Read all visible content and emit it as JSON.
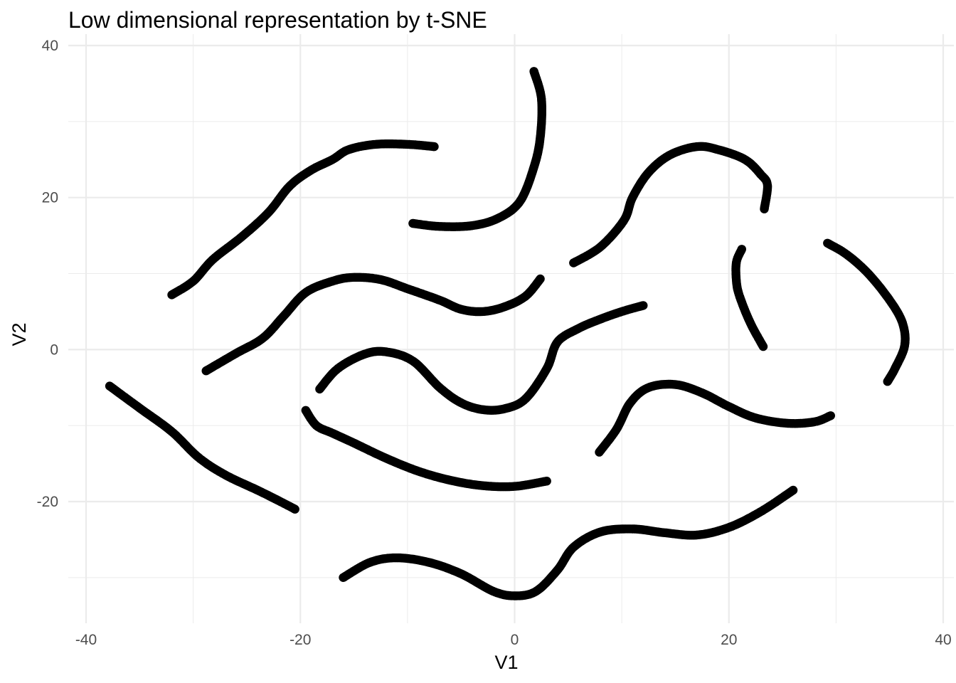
{
  "chart_data": {
    "type": "scatter",
    "title": "Low dimensional representation by t-SNE",
    "xlabel": "V1",
    "ylabel": "V2",
    "xlim": [
      -40,
      40
    ],
    "ylim": [
      -36,
      40
    ],
    "x_ticks": [
      -40,
      -20,
      0,
      20,
      40
    ],
    "y_ticks": [
      -20,
      0,
      20,
      40
    ],
    "x_tick_labels": [
      "-40",
      "-20",
      "0",
      "20",
      "40"
    ],
    "y_tick_labels": [
      "-20",
      "0",
      "20",
      "40"
    ],
    "x_minor_grid": [
      -30,
      -10,
      10,
      30
    ],
    "y_minor_grid": [
      -30,
      -10,
      10,
      30
    ],
    "grid": true,
    "legend": "none",
    "point_color": "#000000",
    "grid_color": "#ebebeb",
    "background": "#ffffff",
    "series": [
      {
        "points": [
          [
            -32,
            7.2
          ],
          [
            -30,
            9
          ],
          [
            -28.2,
            11.8
          ],
          [
            -25.5,
            14.8
          ],
          [
            -23,
            18
          ],
          [
            -21,
            21.5
          ],
          [
            -19,
            23.6
          ],
          [
            -17,
            25
          ],
          [
            -15.5,
            26.3
          ],
          [
            -13,
            27
          ],
          [
            -10,
            27
          ],
          [
            -7.5,
            26.7
          ]
        ]
      },
      {
        "points": [
          [
            -9.5,
            16.6
          ],
          [
            -7,
            16.2
          ],
          [
            -4,
            16.3
          ],
          [
            -1.5,
            17.3
          ],
          [
            0.5,
            19.5
          ],
          [
            1.8,
            24
          ],
          [
            2.4,
            28
          ],
          [
            2.5,
            33
          ],
          [
            1.8,
            36.6
          ]
        ]
      },
      {
        "points": [
          [
            5.5,
            11.4
          ],
          [
            8,
            13.5
          ],
          [
            10.2,
            17
          ],
          [
            11,
            20
          ],
          [
            12.5,
            23.3
          ],
          [
            14.5,
            25.6
          ],
          [
            17,
            26.7
          ],
          [
            19,
            26.3
          ],
          [
            21.5,
            25
          ],
          [
            23,
            23
          ],
          [
            23.6,
            21.6
          ],
          [
            23.3,
            18.5
          ]
        ]
      },
      {
        "points": [
          [
            21.2,
            13.2
          ],
          [
            20.7,
            11.5
          ],
          [
            20.7,
            9
          ],
          [
            21,
            7
          ],
          [
            22,
            3.5
          ],
          [
            23.2,
            0.4
          ]
        ]
      },
      {
        "points": [
          [
            29.2,
            14
          ],
          [
            31,
            12.5
          ],
          [
            33,
            10
          ],
          [
            35,
            6.5
          ],
          [
            36.2,
            3.5
          ],
          [
            36.4,
            0.5
          ],
          [
            35.5,
            -2.5
          ],
          [
            34.8,
            -4.2
          ]
        ]
      },
      {
        "points": [
          [
            -28.8,
            -2.8
          ],
          [
            -26,
            -0.5
          ],
          [
            -23.5,
            1.5
          ],
          [
            -21.5,
            4.5
          ],
          [
            -19.5,
            7.5
          ],
          [
            -17,
            9
          ],
          [
            -15,
            9.5
          ],
          [
            -12.5,
            9.2
          ],
          [
            -10,
            8
          ],
          [
            -7,
            6.5
          ],
          [
            -5,
            5.3
          ],
          [
            -3,
            5
          ],
          [
            -1,
            5.6
          ],
          [
            1,
            7
          ],
          [
            2.4,
            9.3
          ]
        ]
      },
      {
        "points": [
          [
            -18.2,
            -5.2
          ],
          [
            -16.5,
            -2.5
          ],
          [
            -14,
            -0.6
          ],
          [
            -12,
            -0.3
          ],
          [
            -9.5,
            -1.5
          ],
          [
            -7,
            -5
          ],
          [
            -5,
            -7
          ],
          [
            -3,
            -7.9
          ],
          [
            -1,
            -7.8
          ],
          [
            1,
            -6.5
          ],
          [
            3,
            -2.5
          ],
          [
            4,
            1
          ],
          [
            6,
            2.8
          ],
          [
            8,
            4
          ],
          [
            10,
            5
          ],
          [
            12,
            5.8
          ]
        ]
      },
      {
        "points": [
          [
            -19.5,
            -8
          ],
          [
            -18.5,
            -10
          ],
          [
            -17,
            -11
          ],
          [
            -15,
            -12.3
          ],
          [
            -12,
            -14.3
          ],
          [
            -9,
            -16
          ],
          [
            -6,
            -17.2
          ],
          [
            -3,
            -17.9
          ],
          [
            0,
            -18
          ],
          [
            3,
            -17.3
          ]
        ]
      },
      {
        "points": [
          [
            -37.8,
            -4.8
          ],
          [
            -35,
            -7.7
          ],
          [
            -32,
            -10.8
          ],
          [
            -29.5,
            -14.2
          ],
          [
            -27,
            -16.5
          ],
          [
            -24,
            -18.5
          ],
          [
            -22,
            -19.9
          ],
          [
            -20.5,
            -21
          ]
        ]
      },
      {
        "points": [
          [
            7.9,
            -13.5
          ],
          [
            9.5,
            -10.5
          ],
          [
            10.8,
            -7
          ],
          [
            12.5,
            -5
          ],
          [
            15,
            -4.6
          ],
          [
            17.5,
            -5.7
          ],
          [
            20,
            -7.5
          ],
          [
            22.5,
            -9
          ],
          [
            25.5,
            -9.7
          ],
          [
            28,
            -9.5
          ],
          [
            29.5,
            -8.7
          ]
        ]
      },
      {
        "points": [
          [
            -16,
            -30
          ],
          [
            -13.5,
            -28
          ],
          [
            -11,
            -27.4
          ],
          [
            -8,
            -28
          ],
          [
            -5,
            -29.5
          ],
          [
            -2,
            -31.8
          ],
          [
            0,
            -32.4
          ],
          [
            2,
            -31.8
          ],
          [
            4,
            -29
          ],
          [
            5.5,
            -26
          ],
          [
            8,
            -24
          ],
          [
            11,
            -23.6
          ],
          [
            14,
            -24.1
          ],
          [
            17,
            -24.4
          ],
          [
            20,
            -23.4
          ],
          [
            23,
            -21.3
          ],
          [
            26,
            -18.5
          ]
        ]
      }
    ]
  }
}
